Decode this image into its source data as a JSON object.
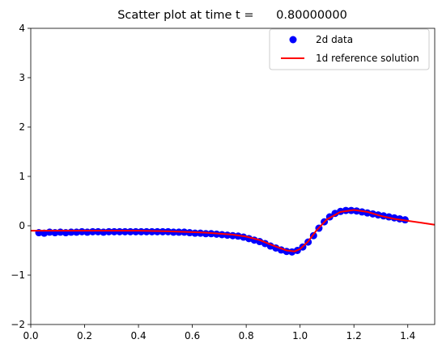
{
  "chart_data": {
    "type": "scatter",
    "title": "Scatter plot at time t =      0.80000000",
    "xlabel": "",
    "ylabel": "",
    "xlim": [
      0.0,
      1.5
    ],
    "ylim": [
      -2,
      4
    ],
    "x_ticks": [
      "0.0",
      "0.2",
      "0.4",
      "0.6",
      "0.8",
      "1.0",
      "1.2",
      "1.4"
    ],
    "y_ticks": [
      "−2",
      "−1",
      "0",
      "1",
      "2",
      "3",
      "4"
    ],
    "grid": false,
    "legend_position": "top-right",
    "series": [
      {
        "name": "2d data",
        "kind": "scatter",
        "color": "#0000ff",
        "points": [
          [
            0.03,
            -0.14
          ],
          [
            0.05,
            -0.15
          ],
          [
            0.07,
            -0.13
          ],
          [
            0.09,
            -0.14
          ],
          [
            0.11,
            -0.13
          ],
          [
            0.13,
            -0.14
          ],
          [
            0.15,
            -0.13
          ],
          [
            0.17,
            -0.13
          ],
          [
            0.19,
            -0.12
          ],
          [
            0.21,
            -0.13
          ],
          [
            0.23,
            -0.12
          ],
          [
            0.25,
            -0.12
          ],
          [
            0.27,
            -0.13
          ],
          [
            0.29,
            -0.12
          ],
          [
            0.31,
            -0.12
          ],
          [
            0.33,
            -0.12
          ],
          [
            0.35,
            -0.12
          ],
          [
            0.37,
            -0.12
          ],
          [
            0.39,
            -0.12
          ],
          [
            0.41,
            -0.12
          ],
          [
            0.43,
            -0.12
          ],
          [
            0.45,
            -0.12
          ],
          [
            0.47,
            -0.12
          ],
          [
            0.49,
            -0.12
          ],
          [
            0.51,
            -0.12
          ],
          [
            0.53,
            -0.13
          ],
          [
            0.55,
            -0.13
          ],
          [
            0.57,
            -0.13
          ],
          [
            0.59,
            -0.14
          ],
          [
            0.61,
            -0.15
          ],
          [
            0.63,
            -0.15
          ],
          [
            0.65,
            -0.16
          ],
          [
            0.67,
            -0.16
          ],
          [
            0.69,
            -0.17
          ],
          [
            0.71,
            -0.18
          ],
          [
            0.73,
            -0.19
          ],
          [
            0.75,
            -0.2
          ],
          [
            0.77,
            -0.21
          ],
          [
            0.79,
            -0.23
          ],
          [
            0.81,
            -0.26
          ],
          [
            0.83,
            -0.29
          ],
          [
            0.85,
            -0.32
          ],
          [
            0.87,
            -0.36
          ],
          [
            0.89,
            -0.41
          ],
          [
            0.91,
            -0.45
          ],
          [
            0.93,
            -0.49
          ],
          [
            0.95,
            -0.52
          ],
          [
            0.97,
            -0.53
          ],
          [
            0.99,
            -0.5
          ],
          [
            1.01,
            -0.43
          ],
          [
            1.03,
            -0.33
          ],
          [
            1.05,
            -0.2
          ],
          [
            1.07,
            -0.05
          ],
          [
            1.09,
            0.08
          ],
          [
            1.11,
            0.18
          ],
          [
            1.13,
            0.25
          ],
          [
            1.15,
            0.29
          ],
          [
            1.17,
            0.31
          ],
          [
            1.19,
            0.31
          ],
          [
            1.21,
            0.3
          ],
          [
            1.23,
            0.28
          ],
          [
            1.25,
            0.26
          ],
          [
            1.27,
            0.24
          ],
          [
            1.29,
            0.22
          ],
          [
            1.31,
            0.2
          ],
          [
            1.33,
            0.18
          ],
          [
            1.35,
            0.16
          ],
          [
            1.37,
            0.14
          ],
          [
            1.39,
            0.12
          ]
        ]
      },
      {
        "name": "1d reference solution",
        "kind": "line",
        "color": "#ff0000",
        "points": [
          [
            0.0,
            -0.1
          ],
          [
            0.1,
            -0.1
          ],
          [
            0.2,
            -0.1
          ],
          [
            0.3,
            -0.1
          ],
          [
            0.4,
            -0.1
          ],
          [
            0.5,
            -0.11
          ],
          [
            0.6,
            -0.13
          ],
          [
            0.65,
            -0.14
          ],
          [
            0.7,
            -0.16
          ],
          [
            0.75,
            -0.18
          ],
          [
            0.8,
            -0.22
          ],
          [
            0.85,
            -0.29
          ],
          [
            0.9,
            -0.4
          ],
          [
            0.95,
            -0.5
          ],
          [
            0.98,
            -0.52
          ],
          [
            1.0,
            -0.47
          ],
          [
            1.03,
            -0.32
          ],
          [
            1.06,
            -0.1
          ],
          [
            1.1,
            0.13
          ],
          [
            1.15,
            0.28
          ],
          [
            1.2,
            0.32
          ],
          [
            1.25,
            0.28
          ],
          [
            1.3,
            0.2
          ],
          [
            1.35,
            0.14
          ],
          [
            1.4,
            0.1
          ],
          [
            1.45,
            0.06
          ],
          [
            1.5,
            0.02
          ]
        ]
      }
    ]
  }
}
